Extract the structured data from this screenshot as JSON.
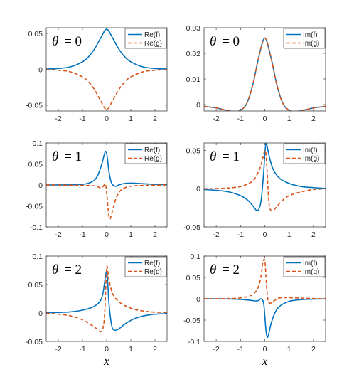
{
  "colors": {
    "solid": "#0072BD",
    "dashed": "#D95319"
  },
  "chart_data": [
    {
      "type": "line",
      "panel": "top-left",
      "annotation": {
        "symbol": "θ",
        "equals": "= 0"
      },
      "xlim": [
        -2.5,
        2.5
      ],
      "ylim": [
        -0.058,
        0.058
      ],
      "xticks": [
        -2,
        -1,
        0,
        1,
        2
      ],
      "xtick_labels": [
        "-2",
        "-1",
        "0",
        "1",
        "2"
      ],
      "yticks": [
        -0.05,
        0,
        0.05
      ],
      "ytick_labels": [
        "-0.05",
        "0",
        "0.05"
      ],
      "xlabel": "",
      "legend_position": "top-right",
      "grid": false,
      "x": [
        -2.5,
        -2.0,
        -1.5,
        -1.0,
        -0.75,
        -0.5,
        -0.25,
        0,
        0.25,
        0.5,
        0.75,
        1.0,
        1.5,
        2.0,
        2.5
      ],
      "series": [
        {
          "name": "Re(f)",
          "style": "solid",
          "values": [
            0.0004,
            0.0012,
            0.0035,
            0.0105,
            0.0175,
            0.0285,
            0.0435,
            0.056,
            0.0435,
            0.0285,
            0.0175,
            0.0105,
            0.0035,
            0.0012,
            0.0004
          ]
        },
        {
          "name": "Re(g)",
          "style": "dashed",
          "values": [
            -0.0004,
            -0.0012,
            -0.0035,
            -0.0105,
            -0.0175,
            -0.0285,
            -0.0435,
            -0.056,
            -0.0435,
            -0.0285,
            -0.0175,
            -0.0105,
            -0.0035,
            -0.0012,
            -0.0004
          ]
        }
      ]
    },
    {
      "type": "line",
      "panel": "top-right",
      "annotation": {
        "symbol": "θ",
        "equals": "= 0"
      },
      "xlim": [
        -2.5,
        2.5
      ],
      "ylim": [
        -0.0025,
        0.03
      ],
      "xticks": [
        -2,
        -1,
        0,
        1,
        2
      ],
      "xtick_labels": [
        "-2",
        "-1",
        "0",
        "1",
        "2"
      ],
      "yticks": [
        0,
        0.01,
        0.02,
        0.03
      ],
      "ytick_labels": [
        "0",
        "0.01",
        "0.02",
        "0.03"
      ],
      "xlabel": "",
      "legend_position": "top-right",
      "grid": false,
      "x": [
        -2.5,
        -2.0,
        -1.5,
        -1.2,
        -1.0,
        -0.75,
        -0.5,
        -0.25,
        0,
        0.25,
        0.5,
        0.75,
        1.0,
        1.2,
        1.5,
        2.0,
        2.5
      ],
      "series": [
        {
          "name": "Im(f)",
          "style": "solid",
          "values": [
            -0.0007,
            -0.0013,
            -0.0024,
            -0.0027,
            -0.0022,
            0.0003,
            0.0075,
            0.0185,
            0.026,
            0.0185,
            0.0075,
            0.0003,
            -0.0022,
            -0.0027,
            -0.0024,
            -0.0013,
            -0.0007
          ]
        },
        {
          "name": "Im(g)",
          "style": "dashed",
          "values": [
            -0.0007,
            -0.0013,
            -0.0024,
            -0.0027,
            -0.0022,
            0.0003,
            0.0075,
            0.0185,
            0.026,
            0.0185,
            0.0075,
            0.0003,
            -0.0022,
            -0.0027,
            -0.0024,
            -0.0013,
            -0.0007
          ]
        }
      ]
    },
    {
      "type": "line",
      "panel": "middle-left",
      "annotation": {
        "symbol": "θ",
        "equals": "= 1"
      },
      "xlim": [
        -2.5,
        2.5
      ],
      "ylim": [
        -0.1,
        0.1
      ],
      "xticks": [
        -2,
        -1,
        0,
        1,
        2
      ],
      "xtick_labels": [
        "-2",
        "-1",
        "0",
        "1",
        "2"
      ],
      "yticks": [
        -0.1,
        -0.05,
        0,
        0.05,
        0.1
      ],
      "ytick_labels": [
        "-0.1",
        "-0.05",
        "0",
        "0.05",
        "0.1"
      ],
      "xlabel": "",
      "legend_position": "top-right",
      "grid": false,
      "series": [
        {
          "name": "Re(f)",
          "style": "solid",
          "x": [
            -2.5,
            -1.5,
            -1.0,
            -0.7,
            -0.5,
            -0.35,
            -0.2,
            -0.1,
            -0.05,
            0.0,
            0.05,
            0.1,
            0.2,
            0.35,
            0.5,
            0.8,
            1.2,
            1.8,
            2.5
          ],
          "values": [
            0.0,
            0.0003,
            0.0015,
            0.005,
            0.012,
            0.025,
            0.05,
            0.072,
            0.08,
            0.075,
            0.055,
            0.03,
            0.005,
            -0.003,
            0.0,
            0.004,
            0.004,
            0.002,
            0.0005
          ]
        },
        {
          "name": "Re(g)",
          "style": "dashed",
          "x": [
            -2.5,
            -1.5,
            -1.0,
            -0.6,
            -0.4,
            -0.25,
            -0.15,
            -0.05,
            0.0,
            0.05,
            0.1,
            0.15,
            0.25,
            0.4,
            0.6,
            0.9,
            1.3,
            2.0,
            2.5
          ],
          "values": [
            0.0,
            -0.0005,
            -0.001,
            -0.0015,
            -0.0035,
            -0.007,
            -0.004,
            0.002,
            -0.02,
            -0.05,
            -0.075,
            -0.08,
            -0.06,
            -0.03,
            -0.012,
            -0.004,
            -0.0015,
            -0.0005,
            0.0
          ]
        }
      ]
    },
    {
      "type": "line",
      "panel": "middle-right",
      "annotation": {
        "symbol": "θ",
        "equals": "= 1"
      },
      "xlim": [
        -2.5,
        2.5
      ],
      "ylim": [
        -0.05,
        0.06
      ],
      "xticks": [
        -2,
        -1,
        0,
        1,
        2
      ],
      "xtick_labels": [
        "-2",
        "-1",
        "0",
        "1",
        "2"
      ],
      "yticks": [
        -0.05,
        0,
        0.05
      ],
      "ytick_labels": [
        "-0.05",
        "0",
        "0.05"
      ],
      "xlabel": "",
      "legend_position": "top-right",
      "grid": false,
      "series": [
        {
          "name": "Im(f)",
          "style": "solid",
          "x": [
            -2.5,
            -2.0,
            -1.5,
            -1.0,
            -0.7,
            -0.5,
            -0.35,
            -0.25,
            -0.15,
            -0.05,
            0.0,
            0.05,
            0.1,
            0.2,
            0.35,
            0.6,
            1.0,
            1.5,
            2.0,
            2.5
          ],
          "values": [
            -0.001,
            -0.002,
            -0.004,
            -0.009,
            -0.015,
            -0.022,
            -0.028,
            -0.027,
            -0.015,
            0.02,
            0.045,
            0.06,
            0.055,
            0.04,
            0.025,
            0.014,
            0.007,
            0.003,
            0.0015,
            0.0005
          ]
        },
        {
          "name": "Im(g)",
          "style": "dashed",
          "x": [
            -2.5,
            -2.0,
            -1.5,
            -1.0,
            -0.6,
            -0.4,
            -0.2,
            -0.1,
            0.0,
            0.05,
            0.1,
            0.15,
            0.2,
            0.3,
            0.45,
            0.7,
            1.0,
            1.5,
            2.0,
            2.5
          ],
          "values": [
            0.0,
            0.0003,
            0.001,
            0.003,
            0.008,
            0.014,
            0.027,
            0.038,
            0.05,
            0.045,
            0.02,
            -0.01,
            -0.025,
            -0.029,
            -0.025,
            -0.016,
            -0.009,
            -0.004,
            -0.001,
            0.0
          ]
        }
      ]
    },
    {
      "type": "line",
      "panel": "bottom-left",
      "annotation": {
        "symbol": "θ",
        "equals": "= 2"
      },
      "xlim": [
        -2.5,
        2.5
      ],
      "ylim": [
        -0.05,
        0.1
      ],
      "xticks": [
        -2,
        -1,
        0,
        1,
        2
      ],
      "xtick_labels": [
        "-2",
        "-1",
        "0",
        "1",
        "2"
      ],
      "yticks": [
        -0.05,
        0,
        0.05,
        0.1
      ],
      "ytick_labels": [
        "-0.05",
        "0",
        "0.05",
        "0.1"
      ],
      "xlabel": "x",
      "legend_position": "top-right",
      "grid": false,
      "series": [
        {
          "name": "Re(f)",
          "style": "solid",
          "x": [
            -2.5,
            -2.0,
            -1.5,
            -1.0,
            -0.6,
            -0.4,
            -0.25,
            -0.15,
            -0.08,
            0.0,
            0.05,
            0.1,
            0.2,
            0.3,
            0.5,
            0.8,
            1.2,
            1.8,
            2.5
          ],
          "values": [
            0.0005,
            0.001,
            0.002,
            0.005,
            0.01,
            0.015,
            0.022,
            0.035,
            0.055,
            0.073,
            0.05,
            0.015,
            -0.02,
            -0.03,
            -0.028,
            -0.018,
            -0.009,
            -0.003,
            -0.001
          ]
        },
        {
          "name": "Re(g)",
          "style": "dashed",
          "x": [
            -2.5,
            -2.0,
            -1.5,
            -1.0,
            -0.6,
            -0.4,
            -0.25,
            -0.15,
            -0.08,
            0.0,
            0.05,
            0.1,
            0.2,
            0.3,
            0.5,
            0.8,
            1.2,
            1.8,
            2.5
          ],
          "values": [
            -0.0005,
            -0.002,
            -0.005,
            -0.012,
            -0.022,
            -0.028,
            -0.033,
            -0.026,
            0.0,
            0.078,
            0.072,
            0.058,
            0.04,
            0.03,
            0.02,
            0.012,
            0.006,
            0.002,
            0.001
          ]
        }
      ]
    },
    {
      "type": "line",
      "panel": "bottom-right",
      "annotation": {
        "symbol": "θ",
        "equals": "= 2"
      },
      "xlim": [
        -2.5,
        2.5
      ],
      "ylim": [
        -0.1,
        0.1
      ],
      "xticks": [
        -2,
        -1,
        0,
        1,
        2
      ],
      "xtick_labels": [
        "-2",
        "-1",
        "0",
        "1",
        "2"
      ],
      "yticks": [
        -0.1,
        -0.05,
        0,
        0.05,
        0.1
      ],
      "ytick_labels": [
        "-0.1",
        "-0.05",
        "0",
        "0.05",
        "0.1"
      ],
      "xlabel": "x",
      "legend_position": "top-right",
      "grid": false,
      "series": [
        {
          "name": "Im(f)",
          "style": "solid",
          "x": [
            -2.5,
            -1.5,
            -1.0,
            -0.6,
            -0.4,
            -0.25,
            -0.15,
            -0.05,
            0.0,
            0.05,
            0.1,
            0.15,
            0.25,
            0.4,
            0.6,
            1.0,
            1.5,
            2.0,
            2.5
          ],
          "values": [
            0.0,
            -0.0005,
            -0.0015,
            -0.0035,
            -0.005,
            -0.004,
            0.0,
            -0.01,
            -0.04,
            -0.075,
            -0.09,
            -0.085,
            -0.06,
            -0.035,
            -0.018,
            -0.006,
            -0.002,
            -0.0008,
            -0.0003
          ]
        },
        {
          "name": "Im(g)",
          "style": "dashed",
          "x": [
            -2.5,
            -1.5,
            -1.0,
            -0.6,
            -0.4,
            -0.25,
            -0.15,
            -0.08,
            0.0,
            0.05,
            0.1,
            0.15,
            0.25,
            0.4,
            0.6,
            1.0,
            1.5,
            2.0,
            2.5
          ],
          "values": [
            0.0,
            0.0005,
            0.002,
            0.007,
            0.015,
            0.03,
            0.055,
            0.085,
            0.09,
            0.05,
            0.01,
            -0.008,
            -0.01,
            -0.004,
            0.002,
            0.0025,
            0.0015,
            0.0005,
            0.0
          ]
        }
      ]
    }
  ]
}
